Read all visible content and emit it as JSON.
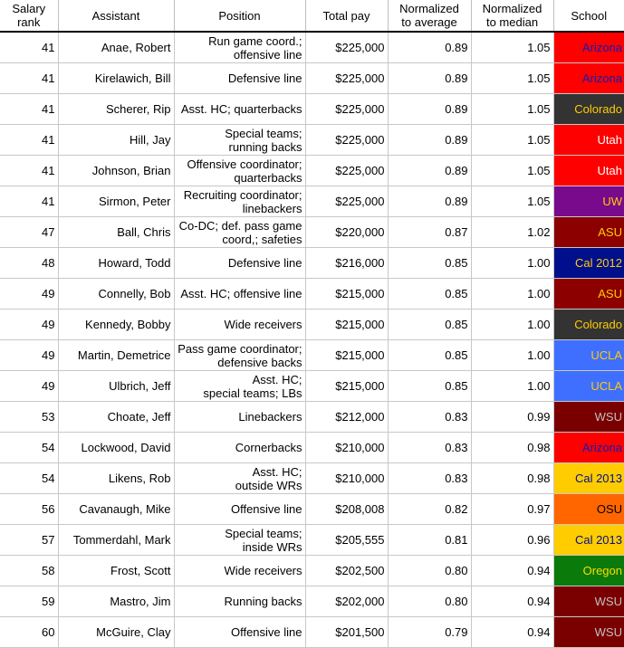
{
  "headers": [
    "Salary rank",
    "Assistant",
    "Position",
    "Total pay",
    "Normalized to average",
    "Normalized to median",
    "School"
  ],
  "header_lines": [
    [
      "Salary",
      "rank"
    ],
    [
      "Assistant"
    ],
    [
      "Position"
    ],
    [
      "Total pay"
    ],
    [
      "Normalized",
      "to average"
    ],
    [
      "Normalized",
      "to median"
    ],
    [
      "School"
    ]
  ],
  "rows": [
    {
      "rank": "41",
      "name": "Anae, Robert",
      "position": [
        "Run game coord.;",
        "offensive line"
      ],
      "pay": "$225,000",
      "avg": "0.89",
      "median": "1.05",
      "school": "Arizona",
      "bg": "#ff0000",
      "fg": "#0a1fb4"
    },
    {
      "rank": "41",
      "name": "Kirelawich, Bill",
      "position": [
        "Defensive line"
      ],
      "pay": "$225,000",
      "avg": "0.89",
      "median": "1.05",
      "school": "Arizona",
      "bg": "#ff0000",
      "fg": "#0a1fb4"
    },
    {
      "rank": "41",
      "name": "Scherer, Rip",
      "position": [
        "Asst. HC; quarterbacks"
      ],
      "pay": "$225,000",
      "avg": "0.89",
      "median": "1.05",
      "school": "Colorado",
      "bg": "#333333",
      "fg": "#ffcc00"
    },
    {
      "rank": "41",
      "name": "Hill, Jay",
      "position": [
        "Special teams;",
        "running backs"
      ],
      "pay": "$225,000",
      "avg": "0.89",
      "median": "1.05",
      "school": "Utah",
      "bg": "#ff0000",
      "fg": "#ffffff"
    },
    {
      "rank": "41",
      "name": "Johnson, Brian",
      "position": [
        "Offensive coordinator;",
        "quarterbacks"
      ],
      "pay": "$225,000",
      "avg": "0.89",
      "median": "1.05",
      "school": "Utah",
      "bg": "#ff0000",
      "fg": "#ffffff"
    },
    {
      "rank": "41",
      "name": "Sirmon, Peter",
      "position": [
        "Recruiting coordinator;",
        "linebackers"
      ],
      "pay": "$225,000",
      "avg": "0.89",
      "median": "1.05",
      "school": "UW",
      "bg": "#7a0a8c",
      "fg": "#ffcc00"
    },
    {
      "rank": "47",
      "name": "Ball, Chris",
      "position": [
        "Co-DC; def. pass game",
        "coord,; safeties"
      ],
      "pay": "$220,000",
      "avg": "0.87",
      "median": "1.02",
      "school": "ASU",
      "bg": "#8c0000",
      "fg": "#ffcc00"
    },
    {
      "rank": "48",
      "name": "Howard, Todd",
      "position": [
        "Defensive line"
      ],
      "pay": "$216,000",
      "avg": "0.85",
      "median": "1.00",
      "school": "Cal 2012",
      "bg": "#000f8c",
      "fg": "#ffcc00"
    },
    {
      "rank": "49",
      "name": "Connelly, Bob",
      "position": [
        "Asst. HC; offensive line"
      ],
      "pay": "$215,000",
      "avg": "0.85",
      "median": "1.00",
      "school": "ASU",
      "bg": "#8c0000",
      "fg": "#ffcc00"
    },
    {
      "rank": "49",
      "name": "Kennedy, Bobby",
      "position": [
        "Wide receivers"
      ],
      "pay": "$215,000",
      "avg": "0.85",
      "median": "1.00",
      "school": "Colorado",
      "bg": "#333333",
      "fg": "#ffcc00"
    },
    {
      "rank": "49",
      "name": "Martin, Demetrice",
      "position": [
        "Pass game coordinator;",
        "defensive backs"
      ],
      "pay": "$215,000",
      "avg": "0.85",
      "median": "1.00",
      "school": "UCLA",
      "bg": "#3f6fff",
      "fg": "#ffcc00"
    },
    {
      "rank": "49",
      "name": "Ulbrich, Jeff",
      "position": [
        "Asst. HC;",
        "special teams; LBs"
      ],
      "pay": "$215,000",
      "avg": "0.85",
      "median": "1.00",
      "school": "UCLA",
      "bg": "#3f6fff",
      "fg": "#ffcc00"
    },
    {
      "rank": "53",
      "name": "Choate, Jeff",
      "position": [
        "Linebackers"
      ],
      "pay": "$212,000",
      "avg": "0.83",
      "median": "0.99",
      "school": "WSU",
      "bg": "#7a0000",
      "fg": "#c0c0c0"
    },
    {
      "rank": "54",
      "name": "Lockwood, David",
      "position": [
        "Cornerbacks"
      ],
      "pay": "$210,000",
      "avg": "0.83",
      "median": "0.98",
      "school": "Arizona",
      "bg": "#ff0000",
      "fg": "#0a1fb4"
    },
    {
      "rank": "54",
      "name": "Likens, Rob",
      "position": [
        "Asst. HC;",
        "outside WRs"
      ],
      "pay": "$210,000",
      "avg": "0.83",
      "median": "0.98",
      "school": "Cal 2013",
      "bg": "#ffcc00",
      "fg": "#000f8c"
    },
    {
      "rank": "56",
      "name": "Cavanaugh, Mike",
      "position": [
        "Offensive line"
      ],
      "pay": "$208,008",
      "avg": "0.82",
      "median": "0.97",
      "school": "OSU",
      "bg": "#ff6600",
      "fg": "#000000"
    },
    {
      "rank": "57",
      "name": "Tommerdahl, Mark",
      "position": [
        "Special teams;",
        "inside WRs"
      ],
      "pay": "$205,555",
      "avg": "0.81",
      "median": "0.96",
      "school": "Cal 2013",
      "bg": "#ffcc00",
      "fg": "#000f8c"
    },
    {
      "rank": "58",
      "name": "Frost, Scott",
      "position": [
        "Wide receivers"
      ],
      "pay": "$202,500",
      "avg": "0.80",
      "median": "0.94",
      "school": "Oregon",
      "bg": "#0a7a0a",
      "fg": "#ffdd00"
    },
    {
      "rank": "59",
      "name": "Mastro, Jim",
      "position": [
        "Running backs"
      ],
      "pay": "$202,000",
      "avg": "0.80",
      "median": "0.94",
      "school": "WSU",
      "bg": "#7a0000",
      "fg": "#c0c0c0"
    },
    {
      "rank": "60",
      "name": "McGuire, Clay",
      "position": [
        "Offensive line"
      ],
      "pay": "$201,500",
      "avg": "0.79",
      "median": "0.94",
      "school": "WSU",
      "bg": "#7a0000",
      "fg": "#c0c0c0"
    }
  ]
}
